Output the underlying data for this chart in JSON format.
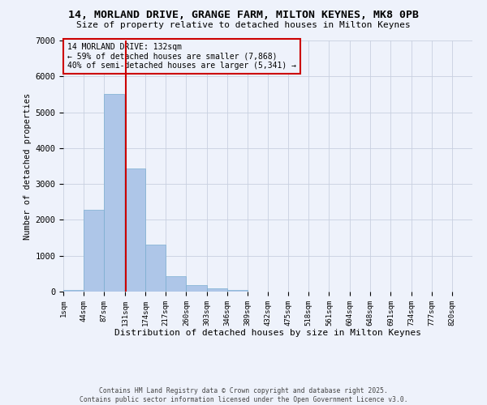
{
  "title_line1": "14, MORLAND DRIVE, GRANGE FARM, MILTON KEYNES, MK8 0PB",
  "title_line2": "Size of property relative to detached houses in Milton Keynes",
  "xlabel": "Distribution of detached houses by size in Milton Keynes",
  "ylabel": "Number of detached properties",
  "annotation_line1": "14 MORLAND DRIVE: 132sqm",
  "annotation_line2": "← 59% of detached houses are smaller (7,868)",
  "annotation_line3": "40% of semi-detached houses are larger (5,341) →",
  "footer_line1": "Contains HM Land Registry data © Crown copyright and database right 2025.",
  "footer_line2": "Contains public sector information licensed under the Open Government Licence v3.0.",
  "bar_edges": [
    1,
    44,
    87,
    131,
    174,
    217,
    260,
    303,
    346,
    389,
    432,
    475,
    518,
    561,
    604,
    648,
    691,
    734,
    777,
    820,
    863
  ],
  "bar_heights": [
    50,
    2280,
    5500,
    3430,
    1320,
    430,
    170,
    80,
    40,
    10,
    5,
    3,
    2,
    1,
    1,
    0,
    0,
    0,
    0,
    0
  ],
  "bar_color": "#aec6e8",
  "bar_edgecolor": "#7aaed0",
  "vline_x": 132,
  "vline_color": "#cc0000",
  "grid_color": "#c8d0e0",
  "background_color": "#eef2fb",
  "annotation_box_color": "#cc0000",
  "ylim": [
    0,
    7000
  ],
  "yticks": [
    0,
    1000,
    2000,
    3000,
    4000,
    5000,
    6000,
    7000
  ]
}
